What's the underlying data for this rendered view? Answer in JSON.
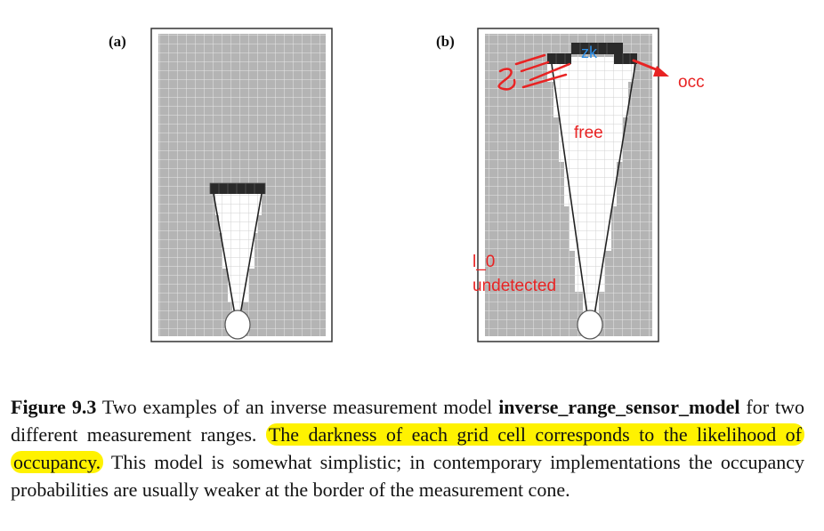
{
  "panels": [
    {
      "label": "(a)"
    },
    {
      "label": "(b)"
    }
  ],
  "annotations": {
    "zk": "zk",
    "occ": "occ",
    "free": "free",
    "l0": "l_0",
    "undetected": "undetected"
  },
  "caption": {
    "figure_label": "Figure 9.3",
    "text_1": " Two examples of an inverse measurement model ",
    "bold_term": "inverse_range_sensor_model",
    "text_2": " for two different measurement ranges. ",
    "highlighted": "The darkness of each grid cell corresponds to the likelihood of occupancy.",
    "text_3": " This model is somewhat simplistic; in contemporary implementations the occupancy probabilities are usually weaker at the border of the measurement cone."
  },
  "colors": {
    "grid_background": "#b4b4b4",
    "free_cells": "#ffffff",
    "occupied_cells": "#2a2a2a",
    "annotation_red": "#e82323",
    "annotation_blue": "#2f8fe6",
    "highlight": "#fff200"
  }
}
